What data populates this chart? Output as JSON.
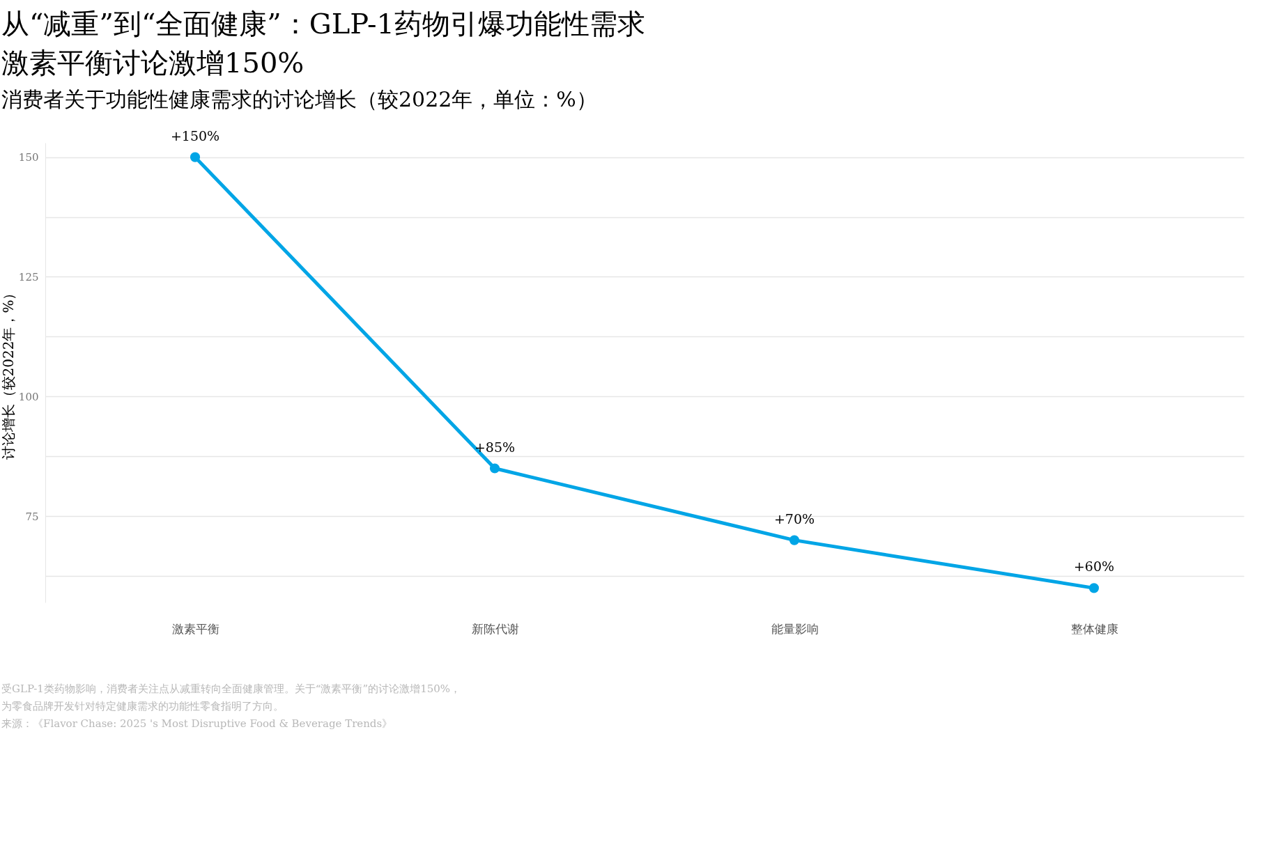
{
  "chart_data": {
    "type": "line",
    "title": "从“减重”到“全面健康”：GLP-1药物引爆功能性需求",
    "subtitle": "激素平衡讨论激增150%",
    "ylabel": "讨论增长（较2022年，%）",
    "categories": [
      "激素平衡",
      "新陈代谢",
      "能量影响",
      "整体健康"
    ],
    "series": [
      {
        "color": "#00a5e6",
        "values": [
          150,
          85,
          70,
          60
        ],
        "value_labels": [
          "+150%",
          "+85%",
          "+70%",
          "+60%"
        ]
      }
    ],
    "ylim": [
      57,
      153
    ],
    "yticks": [
      {
        "value": 62.5,
        "label": null
      },
      75,
      {
        "value": 87.5,
        "label": null
      },
      100,
      {
        "value": 112.5,
        "label": null
      },
      125,
      {
        "value": 137.5,
        "label": null
      },
      150
    ],
    "grid": "y",
    "marker": "circle",
    "line_style": "solid",
    "legend": false,
    "annotations": [
      "消费者关于功能性健康需求的讨论增长（较2022年，单位：%）",
      "受GLP-1类药物影响，消费者关注点从减重转向全面健康管理。关于“激素平衡”的讨论激增150%，",
      "为零食品牌开发针对特定健康需求的功能性零食指明了方向。",
      "来源：《Flavor Chase: 2025 's Most Disruptive Food & Beverage Trends》"
    ]
  }
}
